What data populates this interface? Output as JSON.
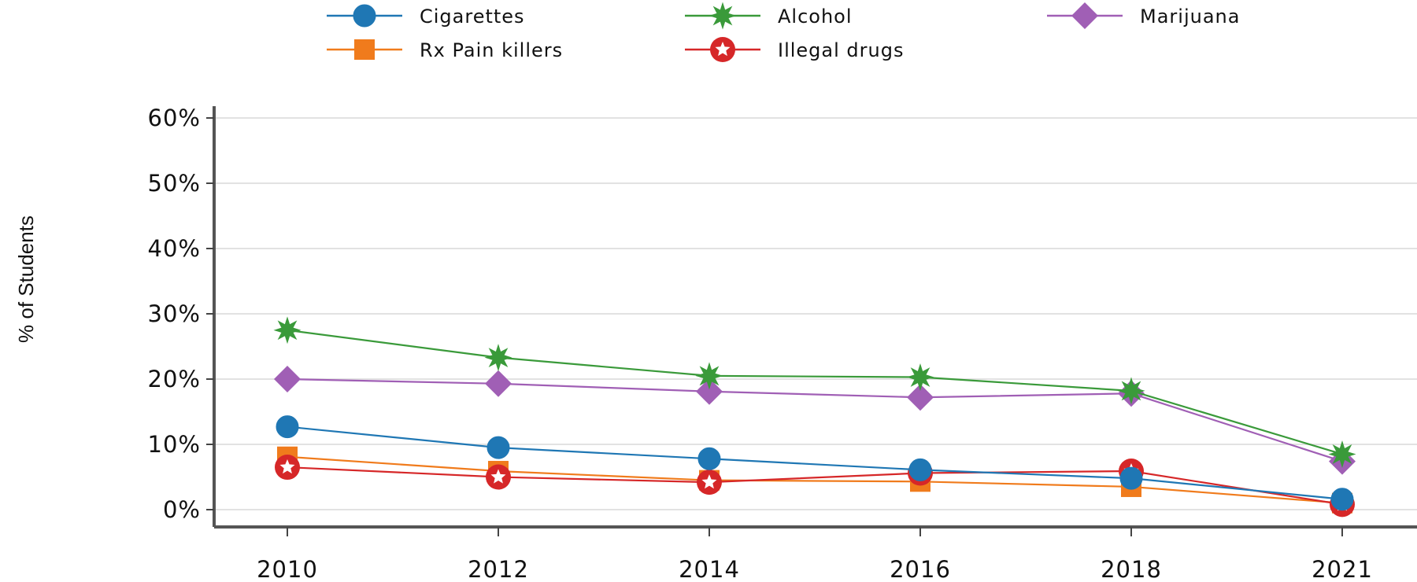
{
  "chart_data": {
    "type": "line",
    "x": [
      "2010",
      "2012",
      "2014",
      "2016",
      "2018",
      "2021"
    ],
    "ylabel": "% of Students",
    "xlabel": "",
    "ylim": [
      0,
      60
    ],
    "yticks": [
      "0%",
      "10%",
      "20%",
      "30%",
      "40%",
      "50%",
      "60%"
    ],
    "grid": "horizontal",
    "legend_position": "top",
    "series": [
      {
        "name": "Cigarettes",
        "color": "#1f77b4",
        "marker": "circle",
        "values": [
          12.7,
          9.5,
          7.8,
          6.1,
          4.8,
          1.6
        ]
      },
      {
        "name": "Alcohol",
        "color": "#3a9a3a",
        "marker": "star",
        "values": [
          27.5,
          23.3,
          20.5,
          20.3,
          18.2,
          8.5
        ]
      },
      {
        "name": "Marijuana",
        "color": "#a05fb5",
        "marker": "diamond",
        "values": [
          20.0,
          19.3,
          18.1,
          17.2,
          17.8,
          7.4
        ]
      },
      {
        "name": "Rx Pain killers",
        "color": "#f07b1c",
        "marker": "square",
        "values": [
          8.1,
          5.9,
          4.5,
          4.3,
          3.5,
          1.0
        ]
      },
      {
        "name": "Illegal drugs",
        "color": "#d62728",
        "marker": "ring-star",
        "values": [
          6.5,
          5.0,
          4.2,
          5.6,
          5.9,
          0.8
        ]
      }
    ]
  }
}
